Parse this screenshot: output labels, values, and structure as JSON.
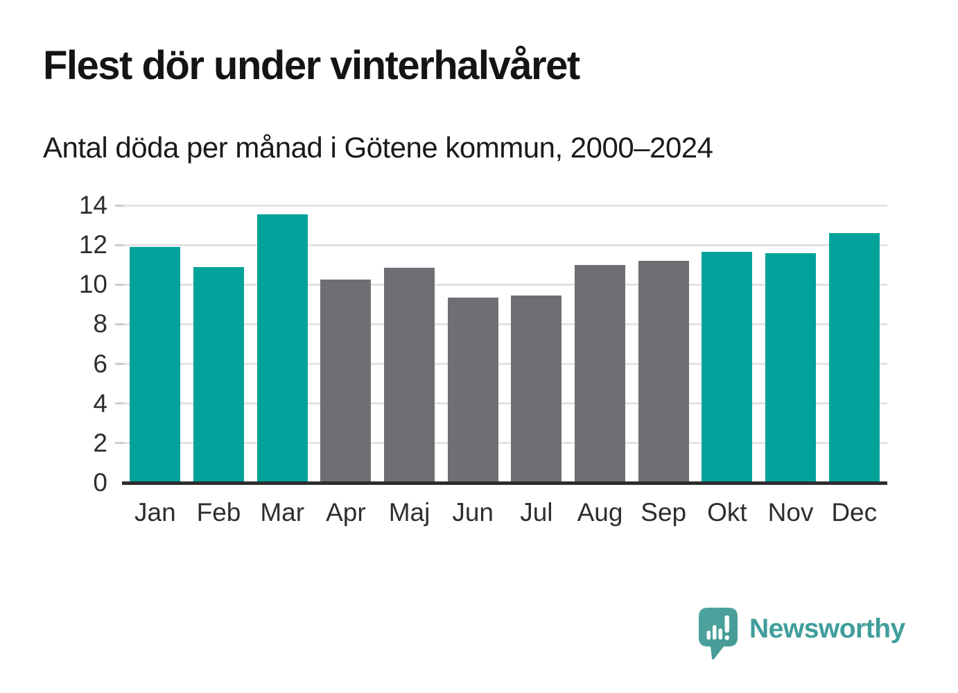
{
  "title": "Flest dör under vinterhalvåret",
  "subtitle": "Antal döda per månad i Götene kommun, 2000–2024",
  "branding": {
    "logo_text": "Newsworthy",
    "logo_icon": "newsworthy-speech-bubble-bar-chart-icon"
  },
  "colors": {
    "winter": "#00a29a",
    "summer": "#6e6e74",
    "axis": "#2d2d2d",
    "gridline": "#e3e3e3",
    "label_text": "#2e2e2e",
    "title_text": "#141414",
    "logo_teal": "#3f9e9c",
    "logo_icon_light": "#4ea5a0",
    "logo_icon_dark": "#3f948f",
    "background": "#ffffff"
  },
  "chart_data": {
    "type": "bar",
    "title": "Flest dör under vinterhalvåret",
    "subtitle": "Antal döda per månad i Götene kommun, 2000–2024",
    "categories": [
      "Jan",
      "Feb",
      "Mar",
      "Apr",
      "Maj",
      "Jun",
      "Jul",
      "Aug",
      "Sep",
      "Okt",
      "Nov",
      "Dec"
    ],
    "values": [
      11.9,
      10.9,
      13.55,
      10.25,
      10.85,
      9.35,
      9.45,
      11.0,
      11.2,
      11.65,
      11.6,
      12.6
    ],
    "point_colors": [
      "winter",
      "winter",
      "winter",
      "summer",
      "summer",
      "summer",
      "summer",
      "summer",
      "summer",
      "winter",
      "winter",
      "winter"
    ],
    "xlabel": "",
    "ylabel": "",
    "ylim": [
      0,
      14
    ],
    "yticks": [
      0,
      2,
      4,
      6,
      8,
      10,
      12,
      14
    ],
    "grid": "horizontal",
    "legend": "none"
  }
}
